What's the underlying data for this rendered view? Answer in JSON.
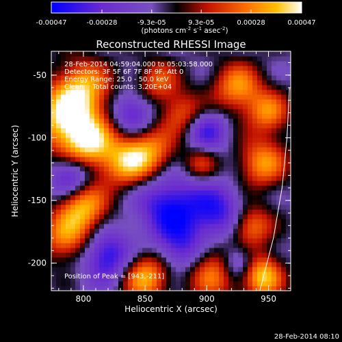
{
  "colorbar": {
    "tick_labels": [
      "-0.00047",
      "-0.00028",
      "-9.3e-05",
      "9.3e-05",
      "0.00028",
      "0.00047"
    ],
    "tick_values": [
      -0.00047,
      -0.00028,
      -9.3e-05,
      9.3e-05,
      0.00028,
      0.00047
    ],
    "range": [
      -0.00047,
      0.00047
    ],
    "unit_prefix": "(photons cm",
    "unit_exp1": "-2",
    "unit_mid": " s",
    "unit_exp2": "-1",
    "unit_mid2": " asec",
    "unit_exp3": "-2",
    "unit_suffix": ")"
  },
  "chart_data": {
    "type": "heatmap",
    "title": "Reconstructed RHESSI Image",
    "xlabel": "Heliocentric X (arcsec)",
    "ylabel": "Heliocentric Y (arcsec)",
    "xlim": [
      774,
      968
    ],
    "ylim": [
      -222,
      -31
    ],
    "x_ticks": [
      800,
      850,
      900,
      950
    ],
    "y_ticks": [
      -50,
      -100,
      -150,
      -200
    ],
    "annotations": [
      "28-Feb-2014 04:59:04.000 to 05:03:58.000",
      "Detectors: 3F 5F 6F 7F 8F 9F, Att 0",
      "Energy Range: 25.0 - 50.0 keV",
      "Clean    Total counts: 3.20E+04"
    ],
    "peak_label": "Position of Peak = [943,-211]",
    "peak": [
      943,
      -211
    ],
    "limb_points": [
      [
        943,
        -222
      ],
      [
        954,
        -180
      ],
      [
        961,
        -140
      ],
      [
        965,
        -100
      ],
      [
        967,
        -60
      ]
    ],
    "blobs": [
      {
        "x": 785,
        "y": -85,
        "v": 1.0,
        "s": 18
      },
      {
        "x": 800,
        "y": -60,
        "v": 0.8,
        "s": 16
      },
      {
        "x": 805,
        "y": -105,
        "v": 0.9,
        "s": 15
      },
      {
        "x": 835,
        "y": -120,
        "v": 0.8,
        "s": 14
      },
      {
        "x": 855,
        "y": -110,
        "v": 0.7,
        "s": 14
      },
      {
        "x": 860,
        "y": -55,
        "v": 0.6,
        "s": 12
      },
      {
        "x": 880,
        "y": -80,
        "v": 0.6,
        "s": 12
      },
      {
        "x": 800,
        "y": -155,
        "v": 0.9,
        "s": 14
      },
      {
        "x": 785,
        "y": -180,
        "v": 0.7,
        "s": 14
      },
      {
        "x": 850,
        "y": -210,
        "v": 0.9,
        "s": 14
      },
      {
        "x": 905,
        "y": -205,
        "v": 0.8,
        "s": 16
      },
      {
        "x": 945,
        "y": -210,
        "v": 1.0,
        "s": 12
      },
      {
        "x": 935,
        "y": -170,
        "v": 0.8,
        "s": 12
      },
      {
        "x": 945,
        "y": -120,
        "v": 0.8,
        "s": 14
      },
      {
        "x": 925,
        "y": -60,
        "v": 0.8,
        "s": 14
      },
      {
        "x": 950,
        "y": -80,
        "v": 0.7,
        "s": 12
      },
      {
        "x": 895,
        "y": -120,
        "v": 0.5,
        "s": 10
      },
      {
        "x": 870,
        "y": -155,
        "v": -0.8,
        "s": 18
      },
      {
        "x": 910,
        "y": -160,
        "v": -0.7,
        "s": 16
      },
      {
        "x": 820,
        "y": -195,
        "v": -0.8,
        "s": 14
      },
      {
        "x": 790,
        "y": -130,
        "v": -0.7,
        "s": 12
      },
      {
        "x": 840,
        "y": -80,
        "v": -0.6,
        "s": 12
      },
      {
        "x": 900,
        "y": -95,
        "v": -0.6,
        "s": 12
      },
      {
        "x": 925,
        "y": -200,
        "v": -0.7,
        "s": 10
      },
      {
        "x": 880,
        "y": -190,
        "v": -0.6,
        "s": 14
      }
    ]
  },
  "footer": {
    "timestamp": "28-Feb-2014 08:10"
  }
}
